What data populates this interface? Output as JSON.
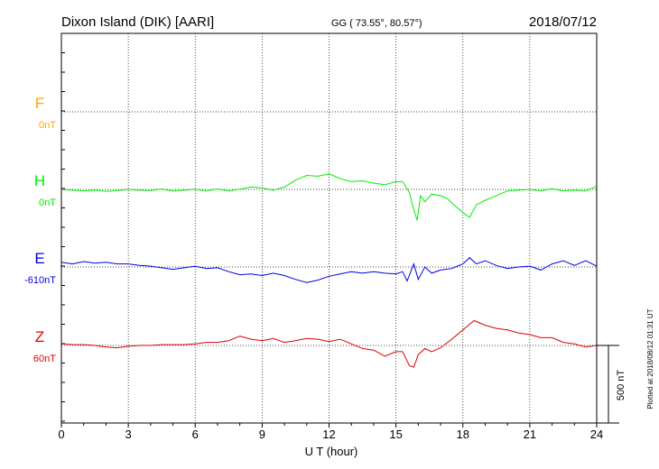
{
  "header": {
    "station": "Dixon Island (DIK)  [AARI]",
    "coords": "GG ( 73.55°,  80.57°)",
    "date": "2018/07/12"
  },
  "footer": {
    "xlabel": "U T (hour)",
    "plotted": "Plotted at 2018/08/12 01:31  UT",
    "scale_label": "500 nT"
  },
  "colors": {
    "F": "#ffa500",
    "H": "#00ee00",
    "E": "#0000dd",
    "Z": "#dd0000",
    "axis": "#000000"
  },
  "chart_data": {
    "type": "line",
    "x_unit": "hour (UT)",
    "xlim": [
      0,
      24
    ],
    "xticks": [
      "0",
      "3",
      "6",
      "9",
      "12",
      "15",
      "18",
      "21",
      "24"
    ],
    "scale_bar_nT": 500,
    "grid": "dotted, every 3 hours",
    "series": [
      {
        "name": "F",
        "baseline_label": "0nT",
        "points": []
      },
      {
        "name": "H",
        "baseline_label": "0nT",
        "points": [
          [
            0,
            0
          ],
          [
            0.5,
            -5
          ],
          [
            1,
            -10
          ],
          [
            1.5,
            -5
          ],
          [
            2,
            -12
          ],
          [
            2.5,
            -8
          ],
          [
            3,
            0
          ],
          [
            3.5,
            -5
          ],
          [
            4,
            -8
          ],
          [
            4.5,
            3
          ],
          [
            5,
            -10
          ],
          [
            5.5,
            -5
          ],
          [
            6,
            2
          ],
          [
            6.5,
            -10
          ],
          [
            7,
            3
          ],
          [
            7.5,
            -10
          ],
          [
            8,
            2
          ],
          [
            8.5,
            15
          ],
          [
            9,
            10
          ],
          [
            9.5,
            -5
          ],
          [
            10,
            15
          ],
          [
            10.5,
            60
          ],
          [
            11,
            90
          ],
          [
            11.5,
            85
          ],
          [
            12,
            100
          ],
          [
            12.5,
            70
          ],
          [
            13,
            50
          ],
          [
            13.5,
            55
          ],
          [
            14,
            40
          ],
          [
            14.5,
            30
          ],
          [
            15,
            50
          ],
          [
            15.3,
            50
          ],
          [
            15.6,
            -20
          ],
          [
            15.8,
            -130
          ],
          [
            15.95,
            -200
          ],
          [
            16.1,
            -40
          ],
          [
            16.3,
            -80
          ],
          [
            16.6,
            -30
          ],
          [
            17,
            -40
          ],
          [
            17.3,
            -60
          ],
          [
            17.6,
            -100
          ],
          [
            18,
            -150
          ],
          [
            18.3,
            -180
          ],
          [
            18.6,
            -100
          ],
          [
            19,
            -70
          ],
          [
            19.5,
            -40
          ],
          [
            20,
            -10
          ],
          [
            20.5,
            -5
          ],
          [
            21,
            0
          ],
          [
            21.5,
            -10
          ],
          [
            22,
            5
          ],
          [
            22.5,
            -10
          ],
          [
            23,
            -5
          ],
          [
            23.5,
            -10
          ],
          [
            24,
            20
          ]
        ]
      },
      {
        "name": "E",
        "baseline_label": "-610nT",
        "points": [
          [
            0,
            30
          ],
          [
            0.5,
            20
          ],
          [
            1,
            35
          ],
          [
            1.5,
            25
          ],
          [
            2,
            30
          ],
          [
            2.5,
            20
          ],
          [
            3,
            20
          ],
          [
            3.5,
            10
          ],
          [
            4,
            5
          ],
          [
            4.5,
            -5
          ],
          [
            5,
            -15
          ],
          [
            5.5,
            -5
          ],
          [
            6,
            5
          ],
          [
            6.5,
            -10
          ],
          [
            7,
            -5
          ],
          [
            7.5,
            -30
          ],
          [
            8,
            -50
          ],
          [
            8.5,
            -45
          ],
          [
            9,
            -55
          ],
          [
            9.5,
            -40
          ],
          [
            10,
            -55
          ],
          [
            10.5,
            -80
          ],
          [
            11,
            -100
          ],
          [
            11.5,
            -85
          ],
          [
            12,
            -60
          ],
          [
            12.5,
            -45
          ],
          [
            13,
            -30
          ],
          [
            13.5,
            -40
          ],
          [
            14,
            -30
          ],
          [
            14.5,
            -40
          ],
          [
            15,
            -45
          ],
          [
            15.3,
            -30
          ],
          [
            15.5,
            -90
          ],
          [
            15.8,
            20
          ],
          [
            16,
            -80
          ],
          [
            16.3,
            0
          ],
          [
            16.6,
            -40
          ],
          [
            17,
            -20
          ],
          [
            17.5,
            -10
          ],
          [
            18,
            20
          ],
          [
            18.3,
            60
          ],
          [
            18.6,
            20
          ],
          [
            19,
            40
          ],
          [
            19.5,
            10
          ],
          [
            20,
            -10
          ],
          [
            20.5,
            0
          ],
          [
            21,
            5
          ],
          [
            21.5,
            -20
          ],
          [
            22,
            20
          ],
          [
            22.5,
            40
          ],
          [
            23,
            10
          ],
          [
            23.5,
            40
          ],
          [
            24,
            5
          ]
        ]
      },
      {
        "name": "Z",
        "baseline_label": "60nT",
        "points": [
          [
            0,
            10
          ],
          [
            0.5,
            5
          ],
          [
            1,
            5
          ],
          [
            1.5,
            0
          ],
          [
            2,
            -10
          ],
          [
            2.5,
            -15
          ],
          [
            3,
            -5
          ],
          [
            3.5,
            0
          ],
          [
            4,
            0
          ],
          [
            4.5,
            5
          ],
          [
            5,
            5
          ],
          [
            5.5,
            5
          ],
          [
            6,
            10
          ],
          [
            6.5,
            20
          ],
          [
            7,
            20
          ],
          [
            7.5,
            30
          ],
          [
            8,
            60
          ],
          [
            8.5,
            40
          ],
          [
            9,
            30
          ],
          [
            9.5,
            45
          ],
          [
            10,
            20
          ],
          [
            10.5,
            30
          ],
          [
            11,
            45
          ],
          [
            11.5,
            40
          ],
          [
            12,
            25
          ],
          [
            12.5,
            40
          ],
          [
            13,
            10
          ],
          [
            13.5,
            -20
          ],
          [
            14,
            -30
          ],
          [
            14.5,
            -70
          ],
          [
            15,
            -40
          ],
          [
            15.3,
            -40
          ],
          [
            15.6,
            -130
          ],
          [
            15.8,
            -140
          ],
          [
            16,
            -60
          ],
          [
            16.3,
            -20
          ],
          [
            16.6,
            -40
          ],
          [
            17,
            -15
          ],
          [
            17.5,
            40
          ],
          [
            18,
            100
          ],
          [
            18.5,
            160
          ],
          [
            19,
            130
          ],
          [
            19.5,
            110
          ],
          [
            20,
            100
          ],
          [
            20.5,
            80
          ],
          [
            21,
            70
          ],
          [
            21.5,
            50
          ],
          [
            22,
            50
          ],
          [
            22.5,
            20
          ],
          [
            23,
            10
          ],
          [
            23.5,
            -10
          ],
          [
            24,
            0
          ]
        ]
      }
    ]
  }
}
